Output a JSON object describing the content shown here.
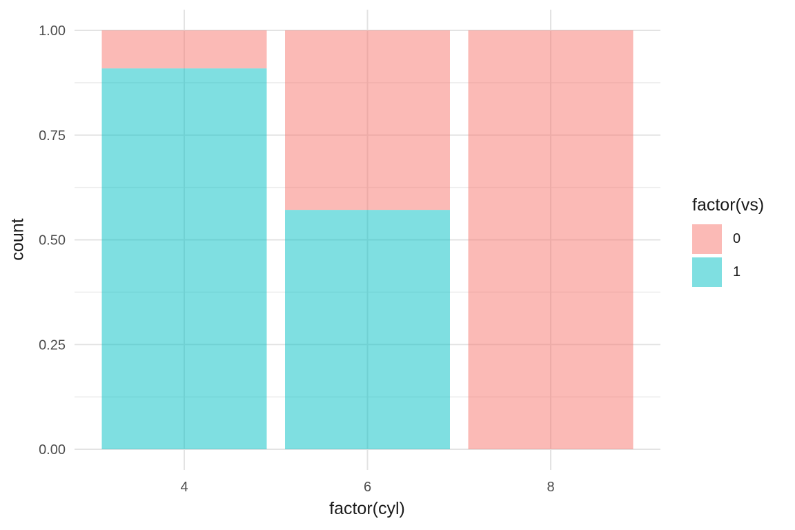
{
  "chart_data": {
    "type": "bar",
    "subtype": "stacked-fill",
    "title": "",
    "xlabel": "factor(cyl)",
    "ylabel": "count",
    "categories": [
      "4",
      "6",
      "8"
    ],
    "series": [
      {
        "name": "0",
        "color": "#F8766D",
        "fill_opacity": 0.5,
        "values": [
          0.0909,
          0.4286,
          1.0
        ]
      },
      {
        "name": "1",
        "color": "#00BFC4",
        "fill_opacity": 0.5,
        "values": [
          0.9091,
          0.5714,
          0.0
        ]
      }
    ],
    "stack_order": "first-series-on-top",
    "ylim": [
      0,
      1
    ],
    "y_major_ticks": [
      0,
      0.25,
      0.5,
      0.75,
      1.0
    ],
    "y_tick_labels": [
      "0.00",
      "0.25",
      "0.50",
      "0.75",
      "1.00"
    ],
    "y_minor_ticks": [
      0.125,
      0.375,
      0.625,
      0.875
    ],
    "legend": {
      "title": "factor(vs)",
      "position": "right"
    },
    "style": {
      "background": "#FFFFFF",
      "grid_major_color": "#E3E3E3",
      "grid_minor_color": "#EDEDED",
      "axis_text_color": "#4D4D4D",
      "axis_title_color": "#1A1A1A",
      "legend_text_color": "#1A1A1A"
    },
    "grid": true,
    "legend_position": "right"
  }
}
